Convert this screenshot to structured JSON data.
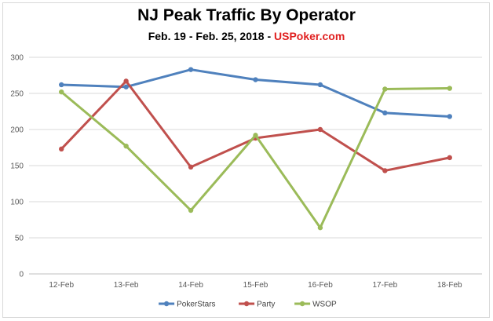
{
  "chart_data": {
    "type": "line",
    "title": "NJ Peak Traffic By Operator",
    "subtitle_prefix": "Feb. 19 - Feb. 25, 2018 - ",
    "subtitle_brand": "USPoker.com",
    "categories": [
      "12-Feb",
      "13-Feb",
      "14-Feb",
      "15-Feb",
      "16-Feb",
      "17-Feb",
      "18-Feb"
    ],
    "ylim": [
      0,
      300
    ],
    "yticks": [
      0,
      50,
      100,
      150,
      200,
      250,
      300
    ],
    "grid": true,
    "legend": "bottom",
    "series": [
      {
        "name": "PokerStars",
        "color": "#4f81bd",
        "values": [
          262,
          259,
          283,
          269,
          262,
          223,
          218
        ]
      },
      {
        "name": "Party",
        "color": "#c0504d",
        "values": [
          173,
          267,
          148,
          188,
          200,
          143,
          161
        ]
      },
      {
        "name": "WSOP",
        "color": "#9bbb59",
        "values": [
          252,
          177,
          88,
          192,
          64,
          256,
          257
        ]
      }
    ]
  }
}
